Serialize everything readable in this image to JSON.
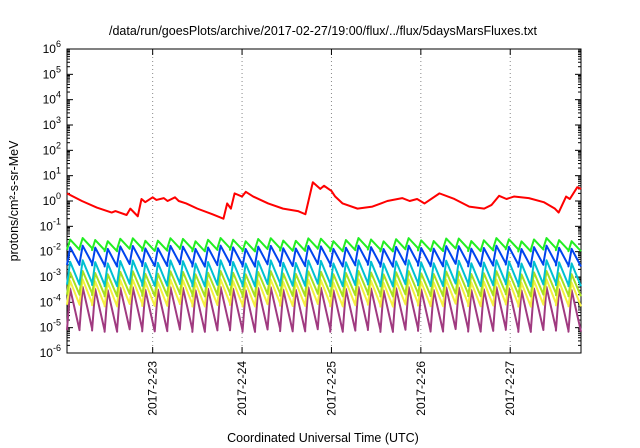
{
  "chart_data": {
    "type": "line",
    "title": "/data/run/goesPlots/archive/2017-02-27/19:00/flux/../flux/5daysMarsFluxes.txt",
    "xlabel": "Coordinated Universal Time (UTC)",
    "ylabel": "protons/cm²-s-sr-MeV",
    "y_scale": "log",
    "ylim": [
      1e-06,
      1000000.0
    ],
    "xlim": [
      "2017-02-22 01:00",
      "2017-02-27 19:00"
    ],
    "y_ticks": [
      "10-6",
      "10-5",
      "10-4",
      "10-3",
      "10-2",
      "10-1",
      "100",
      "101",
      "102",
      "103",
      "104",
      "105",
      "106"
    ],
    "x_ticks": [
      "2017-2-23",
      "2017-2-24",
      "2017-2-25",
      "2017-2-26",
      "2017-2-27"
    ],
    "grid": "vertical dotted at x ticks",
    "colors": {
      "red": "#ff0000",
      "green": "#22ee22",
      "blue": "#0044ee",
      "cyan": "#00c0d0",
      "lime": "#a8e020",
      "yellow": "#f4f040",
      "purple": "#a03a80"
    },
    "series": [
      {
        "color": "red",
        "x": [
          "2017-02-22 01:00",
          "2017-02-22 05:00",
          "2017-02-22 09:00",
          "2017-02-22 13:00",
          "2017-02-22 14:00",
          "2017-02-22 17:00",
          "2017-02-22 18:00",
          "2017-02-22 20:00",
          "2017-02-22 21:00",
          "2017-02-22 22:00",
          "2017-02-23 00:00",
          "2017-02-23 01:00",
          "2017-02-23 03:00",
          "2017-02-23 04:00",
          "2017-02-23 06:00",
          "2017-02-23 07:00",
          "2017-02-23 09:00",
          "2017-02-23 12:00",
          "2017-02-23 16:00",
          "2017-02-23 19:00",
          "2017-02-23 20:00",
          "2017-02-23 21:00",
          "2017-02-23 22:00",
          "2017-02-24 00:00",
          "2017-02-24 01:00",
          "2017-02-24 03:00",
          "2017-02-24 07:00",
          "2017-02-24 11:00",
          "2017-02-24 15:00",
          "2017-02-24 17:00",
          "2017-02-24 19:00",
          "2017-02-24 21:00",
          "2017-02-24 22:00",
          "2017-02-25 00:00",
          "2017-02-25 01:00",
          "2017-02-25 03:00",
          "2017-02-25 07:00",
          "2017-02-25 11:00",
          "2017-02-25 15:00",
          "2017-02-25 19:00",
          "2017-02-25 21:00",
          "2017-02-25 23:00",
          "2017-02-26 01:00",
          "2017-02-26 05:00",
          "2017-02-26 09:00",
          "2017-02-26 13:00",
          "2017-02-26 17:00",
          "2017-02-26 19:00",
          "2017-02-26 21:00",
          "2017-02-26 23:00",
          "2017-02-27 01:00",
          "2017-02-27 05:00",
          "2017-02-27 09:00",
          "2017-02-27 12:00",
          "2017-02-27 13:00",
          "2017-02-27 15:00",
          "2017-02-27 16:00",
          "2017-02-27 18:00",
          "2017-02-27 19:00"
        ],
        "values": [
          2.0,
          1.0,
          0.55,
          0.35,
          0.4,
          0.28,
          0.5,
          0.25,
          1.2,
          0.9,
          1.4,
          1.1,
          1.3,
          1.0,
          1.4,
          1.0,
          0.8,
          0.5,
          0.3,
          0.2,
          0.8,
          0.5,
          2.0,
          1.5,
          2.3,
          1.5,
          0.8,
          0.5,
          0.4,
          0.3,
          5.5,
          3.0,
          4.0,
          2.5,
          1.5,
          0.8,
          0.5,
          0.6,
          1.0,
          1.3,
          1.0,
          1.2,
          0.8,
          2.0,
          1.2,
          0.6,
          0.5,
          0.7,
          1.6,
          1.2,
          1.5,
          1.3,
          0.9,
          0.5,
          0.35,
          1.5,
          1.2,
          3.5,
          3.0
        ]
      },
      {
        "color": "green",
        "peak": 0.03,
        "trough": 0.012
      },
      {
        "color": "blue",
        "peak": 0.015,
        "trough": 0.003
      },
      {
        "color": "cyan",
        "peak": 0.004,
        "trough": 0.0005
      },
      {
        "color": "lime",
        "peak": 0.0015,
        "trough": 0.0002
      },
      {
        "color": "yellow",
        "peak": 0.0007,
        "trough": 8e-05
      },
      {
        "color": "purple",
        "peak": 0.00035,
        "trough": 8e-06
      }
    ],
    "oscillation_cycles": 41
  }
}
